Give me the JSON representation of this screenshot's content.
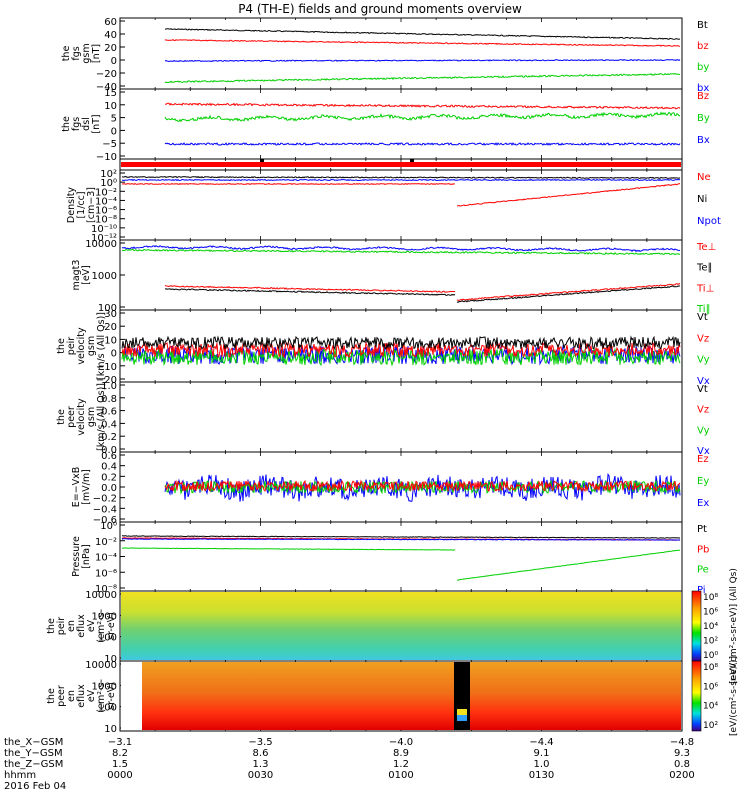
{
  "title": "P4 (TH-E) fields and ground moments overview",
  "colors": {
    "black": "#000000",
    "red": "#ff0000",
    "green": "#00d000",
    "blue": "#0000ff"
  },
  "panels": [
    {
      "id": "fgs_gsm",
      "ylabel": [
        "the",
        "fgs",
        "gsm",
        "[nT]"
      ],
      "yticks": [
        "60",
        "40",
        "20",
        "0",
        "−20",
        "−40"
      ],
      "legend": [
        {
          "text": "Bt",
          "color": "black"
        },
        {
          "text": "bz",
          "color": "red"
        },
        {
          "text": "by",
          "color": "green"
        },
        {
          "text": "bx",
          "color": "blue"
        }
      ]
    },
    {
      "id": "fgs_dsl",
      "ylabel": [
        "the",
        "fgs",
        "dsl",
        "[nT]"
      ],
      "yticks": [
        "15",
        "10",
        "5",
        "0",
        "−5",
        "−10"
      ],
      "legend": [
        {
          "text": "Bz",
          "color": "red"
        },
        {
          "text": "By",
          "color": "green"
        },
        {
          "text": "Bx",
          "color": "blue"
        }
      ]
    },
    {
      "id": "status_bar",
      "ylabel": [],
      "yticks": [],
      "legend": []
    },
    {
      "id": "density",
      "ylabel": [
        "Density",
        "[1/cc]",
        "[cm−3]"
      ],
      "yticks": [
        "10²",
        "10⁰",
        "10⁻²",
        "10⁻⁴",
        "10⁻⁶",
        "10⁻⁸",
        "10⁻¹⁰",
        "10⁻¹²"
      ],
      "legend": [
        {
          "text": "Ne",
          "color": "red"
        },
        {
          "text": "Ni",
          "color": "black"
        },
        {
          "text": "Npot",
          "color": "blue"
        }
      ]
    },
    {
      "id": "temperature",
      "ylabel": [
        "magt3",
        "[eV]"
      ],
      "yticks": [
        "10000",
        "1000",
        "100"
      ],
      "legend": [
        {
          "text": "Te⊥",
          "color": "red"
        },
        {
          "text": "Te∥",
          "color": "black"
        },
        {
          "text": "Ti⊥",
          "color": "red"
        },
        {
          "text": "Ti∥",
          "color": "green"
        }
      ]
    },
    {
      "id": "peir_velocity",
      "ylabel": [
        "the",
        "peir",
        "velocity",
        "gsm",
        "[km/s (All Qs)]"
      ],
      "yticks": [
        "30",
        "20",
        "10",
        "0",
        "−10",
        "−20"
      ],
      "legend": [
        {
          "text": "Vt",
          "color": "black"
        },
        {
          "text": "Vz",
          "color": "red"
        },
        {
          "text": "Vy",
          "color": "green"
        },
        {
          "text": "Vx",
          "color": "blue"
        }
      ]
    },
    {
      "id": "peer_velocity",
      "ylabel": [
        "the",
        "peer",
        "velocity",
        "gsm",
        "[km/s (All Qs)]"
      ],
      "yticks": [
        "1.0",
        "0.8",
        "0.6",
        "0.4",
        "0.2",
        "0.0"
      ],
      "legend": [
        {
          "text": "Vt",
          "color": "black"
        },
        {
          "text": "Vz",
          "color": "red"
        },
        {
          "text": "Vy",
          "color": "green"
        },
        {
          "text": "Vx",
          "color": "blue"
        }
      ]
    },
    {
      "id": "efield",
      "ylabel": [
        "E=−VxB",
        "[mV/m]"
      ],
      "yticks": [
        "0.6",
        "0.4",
        "0.2",
        "0.0",
        "−0.2",
        "−0.4",
        "−0.6"
      ],
      "legend": [
        {
          "text": "Ez",
          "color": "red"
        },
        {
          "text": "Ey",
          "color": "green"
        },
        {
          "text": "Ex",
          "color": "blue"
        }
      ]
    },
    {
      "id": "pressure",
      "ylabel": [
        "Pressure",
        "[nPa]"
      ],
      "yticks": [
        "10⁰",
        "10⁻²",
        "10⁻⁴",
        "10⁻⁶",
        "10⁻⁸"
      ],
      "legend": [
        {
          "text": "Pt",
          "color": "black"
        },
        {
          "text": "Pb",
          "color": "red"
        },
        {
          "text": "Pe",
          "color": "green"
        },
        {
          "text": "Pi",
          "color": "blue"
        }
      ]
    },
    {
      "id": "peir_eflux",
      "ylabel": [
        "the",
        "peir",
        "en",
        "eflux",
        "eV",
        "(cm²-s-",
        "sr-eV)"
      ],
      "yticks": [
        "10000",
        "1000",
        "100",
        "10"
      ],
      "colorbar_ticks": [
        "10⁸",
        "10⁶",
        "10⁴",
        "10²",
        "10⁰"
      ],
      "colorbar_label": "[eV/(cm²-s-sr-eV)] (All Qs)",
      "legend": []
    },
    {
      "id": "peer_eflux",
      "ylabel": [
        "the",
        "peer",
        "en",
        "eflux",
        "eV",
        "(cm²-s-",
        "sr-eV)"
      ],
      "yticks": [
        "10000",
        "1000",
        "100",
        "10"
      ],
      "colorbar_ticks": [
        "10⁸",
        "10⁶",
        "10⁴",
        "10²"
      ],
      "colorbar_label": "[eV/(cm²-s-sr-eV)]",
      "legend": []
    }
  ],
  "xaxis": {
    "row_labels": [
      "the_X−GSM",
      "the_Y−GSM",
      "the_Z−GSM",
      "hhmm",
      "2016 Feb 04"
    ],
    "ticks": [
      {
        "x_gsm": "−3.1",
        "y_gsm": "8.2",
        "z_gsm": "1.5",
        "hhmm": "0000"
      },
      {
        "x_gsm": "−3.5",
        "y_gsm": "8.6",
        "z_gsm": "1.3",
        "hhmm": "0030"
      },
      {
        "x_gsm": "−4.0",
        "y_gsm": "8.9",
        "z_gsm": "1.2",
        "hhmm": "0100"
      },
      {
        "x_gsm": "−4.4",
        "y_gsm": "9.1",
        "z_gsm": "1.0",
        "hhmm": "0130"
      },
      {
        "x_gsm": "−4.8",
        "y_gsm": "9.3",
        "z_gsm": "0.8",
        "hhmm": "0200"
      }
    ]
  },
  "chart_data": {
    "type": "line",
    "title": "P4 (TH-E) fields and ground moments overview",
    "time_range_hhmm": [
      "0000",
      "0200"
    ],
    "series": [
      {
        "panel": "fgs_gsm",
        "name": "Bt",
        "unit": "nT",
        "start": 47,
        "end": 31
      },
      {
        "panel": "fgs_gsm",
        "name": "bz",
        "unit": "nT",
        "start": 34,
        "end": 22
      },
      {
        "panel": "fgs_gsm",
        "name": "by",
        "unit": "nT",
        "start": 0,
        "end": 0
      },
      {
        "panel": "fgs_gsm",
        "name": "bx",
        "unit": "nT",
        "start": -36,
        "end": -17
      },
      {
        "panel": "fgs_dsl",
        "name": "Bz",
        "unit": "nT",
        "start": 9,
        "end": 8
      },
      {
        "panel": "fgs_dsl",
        "name": "By",
        "unit": "nT",
        "start": 4,
        "end": 6
      },
      {
        "panel": "fgs_dsl",
        "name": "Bx",
        "unit": "nT",
        "start": -6,
        "end": -6
      },
      {
        "panel": "efield",
        "name": "Ez",
        "unit": "mV/m",
        "mean": 0.1
      },
      {
        "panel": "efield",
        "name": "Ey",
        "unit": "mV/m",
        "mean": 0.05
      },
      {
        "panel": "efield",
        "name": "Ex",
        "unit": "mV/m",
        "mean": 0.0
      }
    ]
  }
}
